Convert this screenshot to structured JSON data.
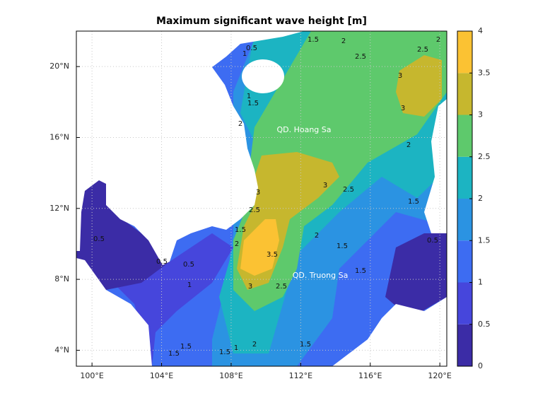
{
  "title": "Maximum significant wave height [m]",
  "map": {
    "xlim": [
      99.1,
      120.4
    ],
    "ylim": [
      3.1,
      22.0
    ],
    "xticks": [
      {
        "value": 100,
        "label": "100°E"
      },
      {
        "value": 104,
        "label": "104°E"
      },
      {
        "value": 108,
        "label": "108°E"
      },
      {
        "value": 112,
        "label": "112°E"
      },
      {
        "value": 116,
        "label": "116°E"
      },
      {
        "value": 120,
        "label": "120°E"
      }
    ],
    "yticks": [
      {
        "value": 4,
        "label": "4°N"
      },
      {
        "value": 8,
        "label": "8°N"
      },
      {
        "value": 12,
        "label": "12°N"
      },
      {
        "value": 16,
        "label": "16°N"
      },
      {
        "value": 20,
        "label": "20°N"
      }
    ],
    "grid": true,
    "annotations": [
      "QD. Hoang Sa",
      "QD. Truong Sa"
    ],
    "contour_labels": [
      0.5,
      1,
      1.5,
      2,
      2.5,
      2.5,
      2,
      3,
      3,
      1,
      1.5,
      2,
      2,
      3,
      2.5,
      1.5,
      3,
      2.5,
      1.5,
      2,
      3.5,
      3,
      2.5,
      2,
      1.5,
      1.5,
      0.5,
      0.5,
      0.5,
      0.5,
      1,
      1.5,
      1.5,
      1.5,
      1,
      2,
      1.5
    ]
  },
  "colorbar": {
    "ylim": [
      0,
      4
    ],
    "yticks": [
      0,
      0.5,
      1,
      1.5,
      2,
      2.5,
      3,
      3.5,
      4
    ],
    "colors": [
      "#3b2ca6",
      "#4646dc",
      "#3d6cf2",
      "#2b93e2",
      "#1cb4c2",
      "#5ec96c",
      "#c6b72e",
      "#fbc233"
    ]
  }
}
